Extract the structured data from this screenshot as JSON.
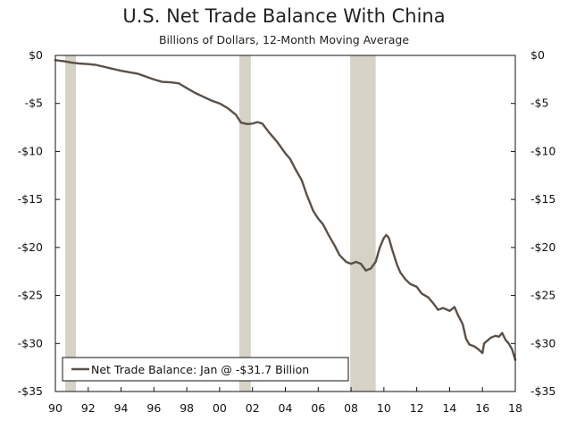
{
  "chart_data": {
    "type": "line",
    "title": "U.S. Net Trade Balance With China",
    "subtitle": "Billions of Dollars, 12-Month Moving Average",
    "xlabel": "",
    "ylabel": "",
    "x_range": [
      1990,
      2018
    ],
    "ylim": [
      -35,
      0
    ],
    "y_ticks": [
      0,
      -5,
      -10,
      -15,
      -20,
      -25,
      -30,
      -35
    ],
    "y_tick_labels": [
      "$0",
      "-$5",
      "-$10",
      "-$15",
      "-$20",
      "-$25",
      "-$30",
      "-$35"
    ],
    "x_ticks": [
      1990,
      1992,
      1994,
      1996,
      1998,
      2000,
      2002,
      2004,
      2006,
      2008,
      2010,
      2012,
      2014,
      2016,
      2018
    ],
    "x_tick_labels": [
      "90",
      "92",
      "94",
      "96",
      "98",
      "00",
      "02",
      "04",
      "06",
      "08",
      "10",
      "12",
      "14",
      "16",
      "18"
    ],
    "recessions": [
      {
        "start": 1990.6,
        "end": 1991.25
      },
      {
        "start": 2001.2,
        "end": 2001.9
      },
      {
        "start": 2007.95,
        "end": 2009.5
      }
    ],
    "series": [
      {
        "name": "Net Trade Balance",
        "color": "#5b5048",
        "points": [
          [
            1990.0,
            -0.5
          ],
          [
            1990.5,
            -0.6
          ],
          [
            1991.0,
            -0.75
          ],
          [
            1991.5,
            -0.85
          ],
          [
            1992.0,
            -0.9
          ],
          [
            1992.5,
            -1.0
          ],
          [
            1993.0,
            -1.2
          ],
          [
            1993.5,
            -1.4
          ],
          [
            1994.0,
            -1.6
          ],
          [
            1994.5,
            -1.75
          ],
          [
            1995.0,
            -1.9
          ],
          [
            1995.5,
            -2.2
          ],
          [
            1996.0,
            -2.5
          ],
          [
            1996.5,
            -2.75
          ],
          [
            1997.0,
            -2.8
          ],
          [
            1997.5,
            -2.9
          ],
          [
            1998.0,
            -3.4
          ],
          [
            1998.5,
            -3.9
          ],
          [
            1999.0,
            -4.3
          ],
          [
            1999.5,
            -4.7
          ],
          [
            2000.0,
            -5.0
          ],
          [
            2000.5,
            -5.5
          ],
          [
            2001.0,
            -6.2
          ],
          [
            2001.3,
            -7.0
          ],
          [
            2001.7,
            -7.15
          ],
          [
            2002.0,
            -7.1
          ],
          [
            2002.3,
            -6.95
          ],
          [
            2002.6,
            -7.1
          ],
          [
            2003.0,
            -8.0
          ],
          [
            2003.5,
            -9.0
          ],
          [
            2004.0,
            -10.2
          ],
          [
            2004.3,
            -10.8
          ],
          [
            2004.6,
            -11.8
          ],
          [
            2005.0,
            -13.0
          ],
          [
            2005.3,
            -14.5
          ],
          [
            2005.7,
            -16.2
          ],
          [
            2006.0,
            -17.0
          ],
          [
            2006.3,
            -17.6
          ],
          [
            2006.6,
            -18.6
          ],
          [
            2007.0,
            -19.8
          ],
          [
            2007.3,
            -20.8
          ],
          [
            2007.7,
            -21.5
          ],
          [
            2008.0,
            -21.7
          ],
          [
            2008.3,
            -21.5
          ],
          [
            2008.6,
            -21.7
          ],
          [
            2008.9,
            -22.4
          ],
          [
            2009.2,
            -22.2
          ],
          [
            2009.5,
            -21.5
          ],
          [
            2009.75,
            -20.0
          ],
          [
            2010.0,
            -19.0
          ],
          [
            2010.15,
            -18.7
          ],
          [
            2010.3,
            -19.0
          ],
          [
            2010.5,
            -20.2
          ],
          [
            2010.8,
            -21.8
          ],
          [
            2011.0,
            -22.6
          ],
          [
            2011.3,
            -23.3
          ],
          [
            2011.6,
            -23.8
          ],
          [
            2012.0,
            -24.1
          ],
          [
            2012.3,
            -24.8
          ],
          [
            2012.7,
            -25.2
          ],
          [
            2013.0,
            -25.8
          ],
          [
            2013.3,
            -26.5
          ],
          [
            2013.6,
            -26.3
          ],
          [
            2014.0,
            -26.6
          ],
          [
            2014.3,
            -26.2
          ],
          [
            2014.5,
            -27.0
          ],
          [
            2014.8,
            -28.0
          ],
          [
            2015.0,
            -29.5
          ],
          [
            2015.2,
            -30.1
          ],
          [
            2015.5,
            -30.3
          ],
          [
            2015.75,
            -30.6
          ],
          [
            2016.0,
            -31.0
          ],
          [
            2016.1,
            -30.0
          ],
          [
            2016.5,
            -29.4
          ],
          [
            2016.8,
            -29.2
          ],
          [
            2017.0,
            -29.3
          ],
          [
            2017.2,
            -28.9
          ],
          [
            2017.4,
            -29.6
          ],
          [
            2017.6,
            -30.0
          ],
          [
            2017.8,
            -30.6
          ],
          [
            2018.0,
            -31.7
          ]
        ]
      }
    ],
    "legend": {
      "label": "Net Trade Balance: Jan @ -$31.7 Billion",
      "position": "bottom-left"
    }
  }
}
